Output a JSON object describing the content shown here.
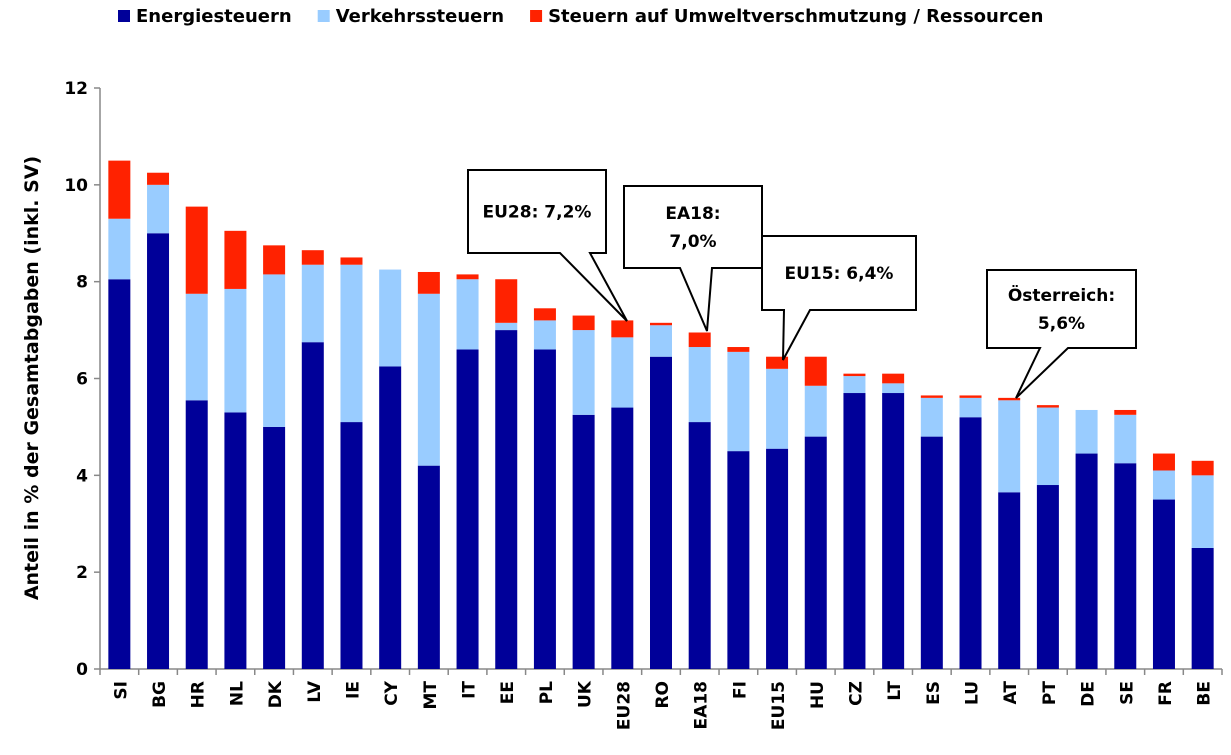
{
  "chart_data": {
    "type": "stacked_bar",
    "y_label": "Anteil in % der Gesamtabgaben (inkl. SV)",
    "categories": [
      "SI",
      "BG",
      "HR",
      "NL",
      "DK",
      "LV",
      "IE",
      "CY",
      "MT",
      "IT",
      "EE",
      "PL",
      "UK",
      "EU28",
      "RO",
      "EA18",
      "FI",
      "EU15",
      "HU",
      "CZ",
      "LT",
      "ES",
      "LU",
      "AT",
      "PT",
      "DE",
      "SE",
      "FR",
      "BE"
    ],
    "series": [
      {
        "name": "Energiesteuern",
        "color": "#000099",
        "values": [
          8.05,
          9.0,
          5.55,
          5.3,
          5.0,
          6.75,
          5.1,
          6.25,
          4.2,
          6.6,
          7.0,
          6.6,
          5.25,
          5.4,
          6.45,
          5.1,
          4.5,
          4.55,
          4.8,
          5.7,
          5.7,
          4.8,
          5.2,
          3.65,
          3.8,
          4.45,
          4.25,
          3.5,
          2.5
        ]
      },
      {
        "name": "Verkehrssteuern",
        "color": "#99ccff",
        "values": [
          1.25,
          1.0,
          2.2,
          2.55,
          3.15,
          1.6,
          3.25,
          2.0,
          3.55,
          1.45,
          0.15,
          0.6,
          1.75,
          1.45,
          0.65,
          1.55,
          2.05,
          1.65,
          1.05,
          0.35,
          0.2,
          0.8,
          0.4,
          1.9,
          1.6,
          0.9,
          1.0,
          0.6,
          1.5
        ]
      },
      {
        "name": "Steuern auf Umweltverschmutzung / Ressourcen",
        "color": "#ff2200",
        "values": [
          1.2,
          0.25,
          1.8,
          1.2,
          0.6,
          0.3,
          0.15,
          0,
          0.45,
          0.1,
          0.9,
          0.25,
          0.3,
          0.35,
          0.05,
          0.3,
          0.1,
          0.25,
          0.6,
          0.05,
          0.2,
          0.05,
          0.05,
          0.05,
          0.05,
          0,
          0.1,
          0.35,
          0.3
        ]
      }
    ],
    "ylim": [
      0,
      12
    ],
    "yticks": [
      0,
      2,
      4,
      6,
      8,
      10,
      12
    ],
    "annotations": [
      {
        "lines": [
          "EU28: 7,2%"
        ]
      },
      {
        "lines": [
          "EA18:",
          "7,0%"
        ]
      },
      {
        "lines": [
          "EU15: 6,4%"
        ]
      },
      {
        "lines": [
          "Österreich:",
          "5,6%"
        ]
      }
    ]
  }
}
